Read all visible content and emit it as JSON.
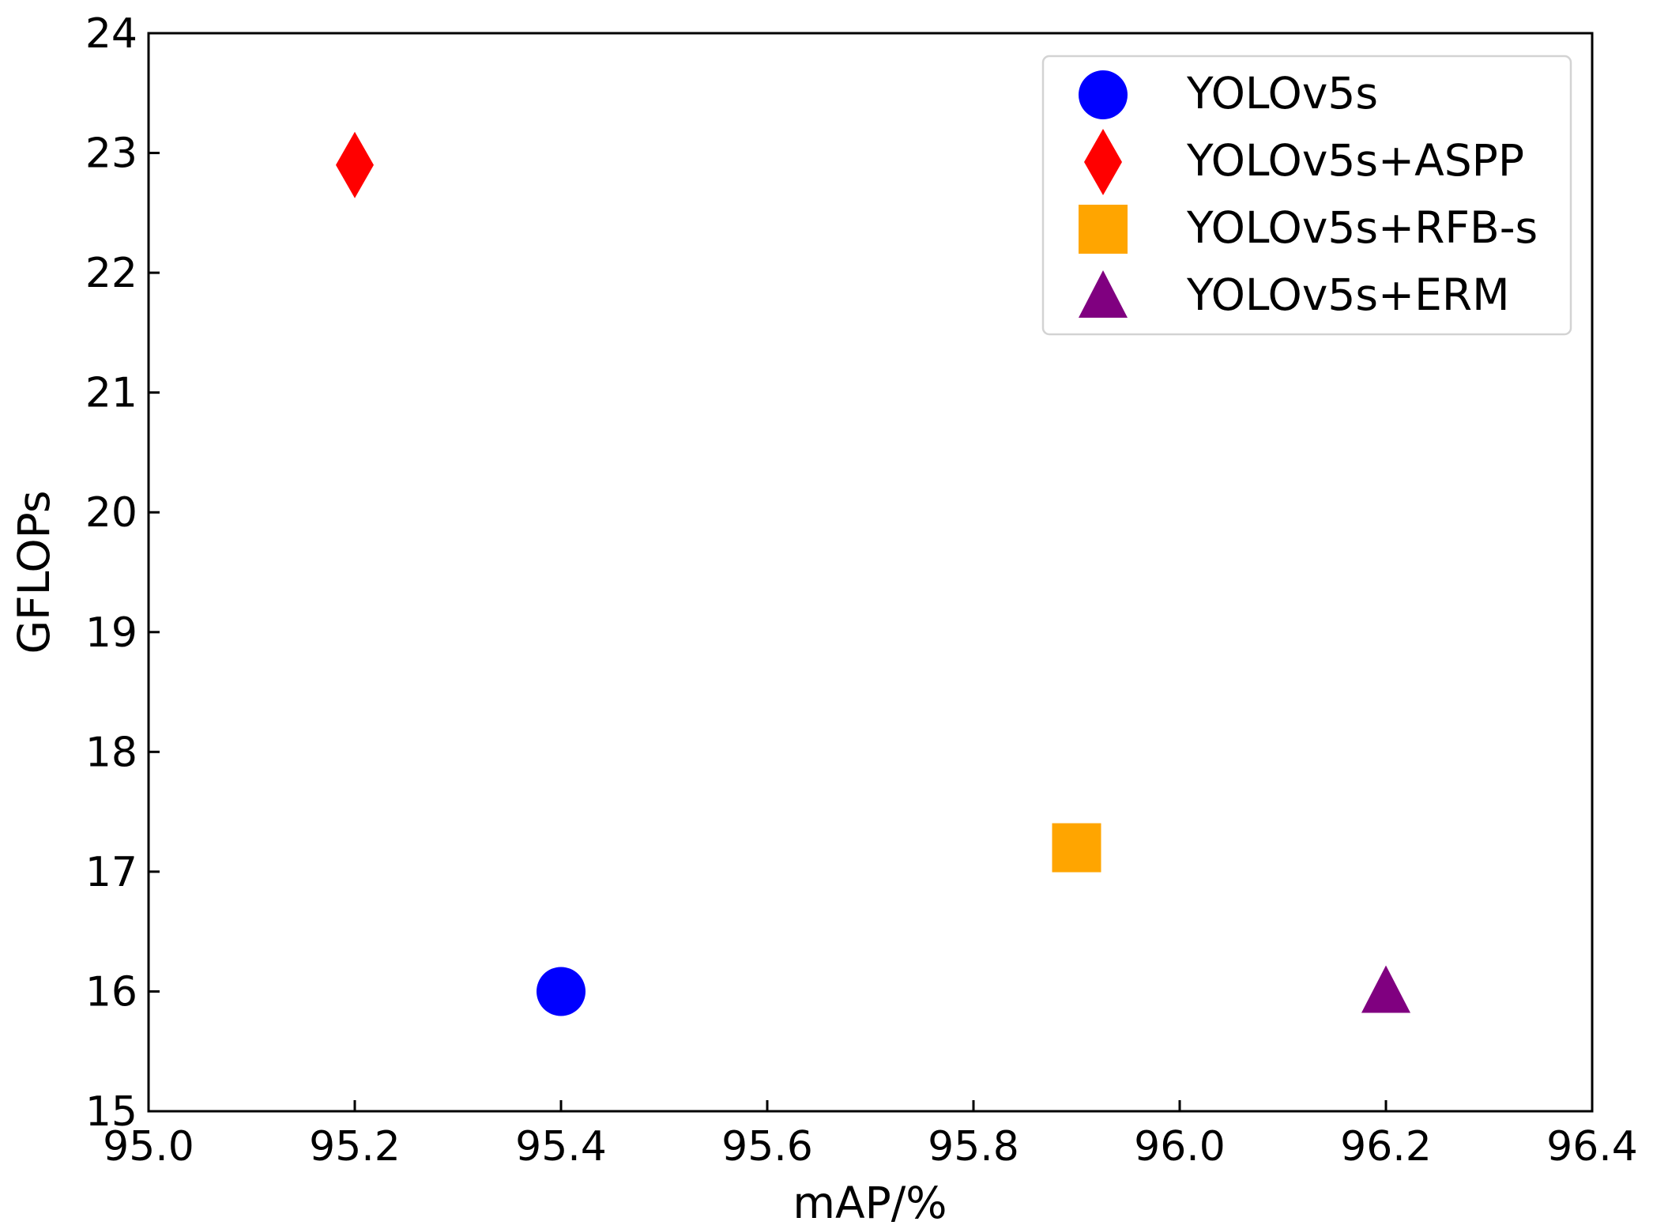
{
  "chart_data": {
    "type": "scatter",
    "title": "",
    "xlabel": "mAP/%",
    "ylabel": "GFLOPs",
    "xlim": [
      95.0,
      96.4
    ],
    "ylim": [
      15,
      24
    ],
    "xticks": [
      "95.0",
      "95.2",
      "95.4",
      "95.6",
      "95.8",
      "96.0",
      "96.2",
      "96.4"
    ],
    "yticks": [
      "15",
      "16",
      "17",
      "18",
      "19",
      "20",
      "21",
      "22",
      "23",
      "24"
    ],
    "tick_direction": "in",
    "grid": false,
    "legend_position": "top-right",
    "series": [
      {
        "name": "YOLOv5s",
        "marker": "circle",
        "color": "#0000ff",
        "x": 95.4,
        "y": 16.0
      },
      {
        "name": "YOLOv5s+ASPP",
        "marker": "diamond",
        "color": "#ff0000",
        "x": 95.2,
        "y": 22.9
      },
      {
        "name": "YOLOv5s+RFB-s",
        "marker": "square",
        "color": "#ffa500",
        "x": 95.9,
        "y": 17.2
      },
      {
        "name": "YOLOv5s+ERM",
        "marker": "triangle",
        "color": "#800080",
        "x": 96.2,
        "y": 16.0
      }
    ]
  }
}
